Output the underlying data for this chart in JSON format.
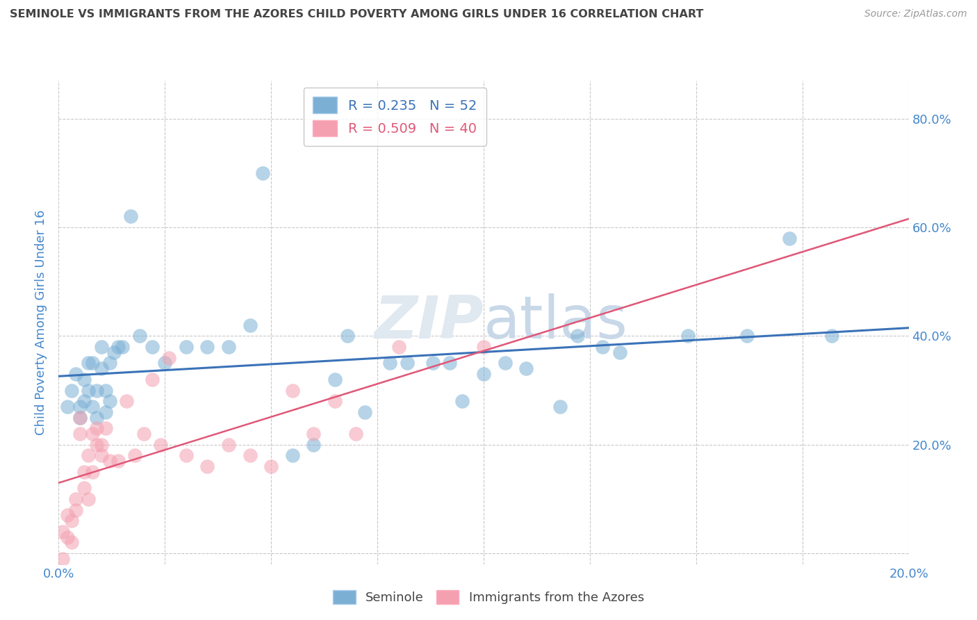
{
  "title": "SEMINOLE VS IMMIGRANTS FROM THE AZORES CHILD POVERTY AMONG GIRLS UNDER 16 CORRELATION CHART",
  "source": "Source: ZipAtlas.com",
  "ylabel": "Child Poverty Among Girls Under 16",
  "xlim": [
    0.0,
    0.2
  ],
  "ylim": [
    -0.02,
    0.87
  ],
  "plot_ylim": [
    -0.02,
    0.87
  ],
  "xticks": [
    0.0,
    0.025,
    0.05,
    0.075,
    0.1,
    0.125,
    0.15,
    0.175,
    0.2
  ],
  "xtick_labels": [
    "0.0%",
    "",
    "",
    "",
    "",
    "",
    "",
    "",
    "20.0%"
  ],
  "ytick_positions": [
    0.0,
    0.2,
    0.4,
    0.6,
    0.8
  ],
  "ytick_labels": [
    "",
    "20.0%",
    "40.0%",
    "60.0%",
    "80.0%"
  ],
  "seminole_R": "0.235",
  "seminole_N": "52",
  "azores_R": "0.509",
  "azores_N": "40",
  "blue_scatter_color": "#7BAFD4",
  "pink_scatter_color": "#F4A0B0",
  "blue_line_color": "#3A72B8",
  "pink_solid_color": "#E05878",
  "pink_dash_color": "#E8A0B0",
  "background_color": "#FFFFFF",
  "grid_color": "#C8C8C8",
  "watermark_color": "#E0E8F0",
  "watermark_text_color": "#C8D8E8",
  "title_color": "#444444",
  "tick_color": "#4488CC",
  "seminole_x": [
    0.002,
    0.003,
    0.004,
    0.005,
    0.005,
    0.006,
    0.006,
    0.007,
    0.007,
    0.008,
    0.008,
    0.009,
    0.009,
    0.01,
    0.01,
    0.011,
    0.011,
    0.012,
    0.012,
    0.013,
    0.014,
    0.015,
    0.017,
    0.019,
    0.022,
    0.025,
    0.03,
    0.035,
    0.04,
    0.045,
    0.048,
    0.055,
    0.06,
    0.065,
    0.068,
    0.072,
    0.078,
    0.082,
    0.088,
    0.092,
    0.095,
    0.1,
    0.105,
    0.11,
    0.118,
    0.122,
    0.128,
    0.132,
    0.148,
    0.162,
    0.172,
    0.182
  ],
  "seminole_y": [
    0.27,
    0.3,
    0.33,
    0.25,
    0.27,
    0.28,
    0.32,
    0.3,
    0.35,
    0.27,
    0.35,
    0.3,
    0.25,
    0.34,
    0.38,
    0.26,
    0.3,
    0.35,
    0.28,
    0.37,
    0.38,
    0.38,
    0.62,
    0.4,
    0.38,
    0.35,
    0.38,
    0.38,
    0.38,
    0.42,
    0.7,
    0.18,
    0.2,
    0.32,
    0.4,
    0.26,
    0.35,
    0.35,
    0.35,
    0.35,
    0.28,
    0.33,
    0.35,
    0.34,
    0.27,
    0.4,
    0.38,
    0.37,
    0.4,
    0.4,
    0.58,
    0.4
  ],
  "azores_x": [
    0.001,
    0.001,
    0.002,
    0.002,
    0.003,
    0.003,
    0.004,
    0.004,
    0.005,
    0.005,
    0.006,
    0.006,
    0.007,
    0.007,
    0.008,
    0.008,
    0.009,
    0.009,
    0.01,
    0.01,
    0.011,
    0.012,
    0.014,
    0.016,
    0.018,
    0.02,
    0.022,
    0.024,
    0.026,
    0.03,
    0.035,
    0.04,
    0.045,
    0.05,
    0.055,
    0.06,
    0.065,
    0.07,
    0.08,
    0.1
  ],
  "azores_y": [
    -0.01,
    0.04,
    0.03,
    0.07,
    0.06,
    0.02,
    0.08,
    0.1,
    0.22,
    0.25,
    0.12,
    0.15,
    0.18,
    0.1,
    0.15,
    0.22,
    0.2,
    0.23,
    0.2,
    0.18,
    0.23,
    0.17,
    0.17,
    0.28,
    0.18,
    0.22,
    0.32,
    0.2,
    0.36,
    0.18,
    0.16,
    0.2,
    0.18,
    0.16,
    0.3,
    0.22,
    0.28,
    0.22,
    0.38,
    0.38
  ]
}
